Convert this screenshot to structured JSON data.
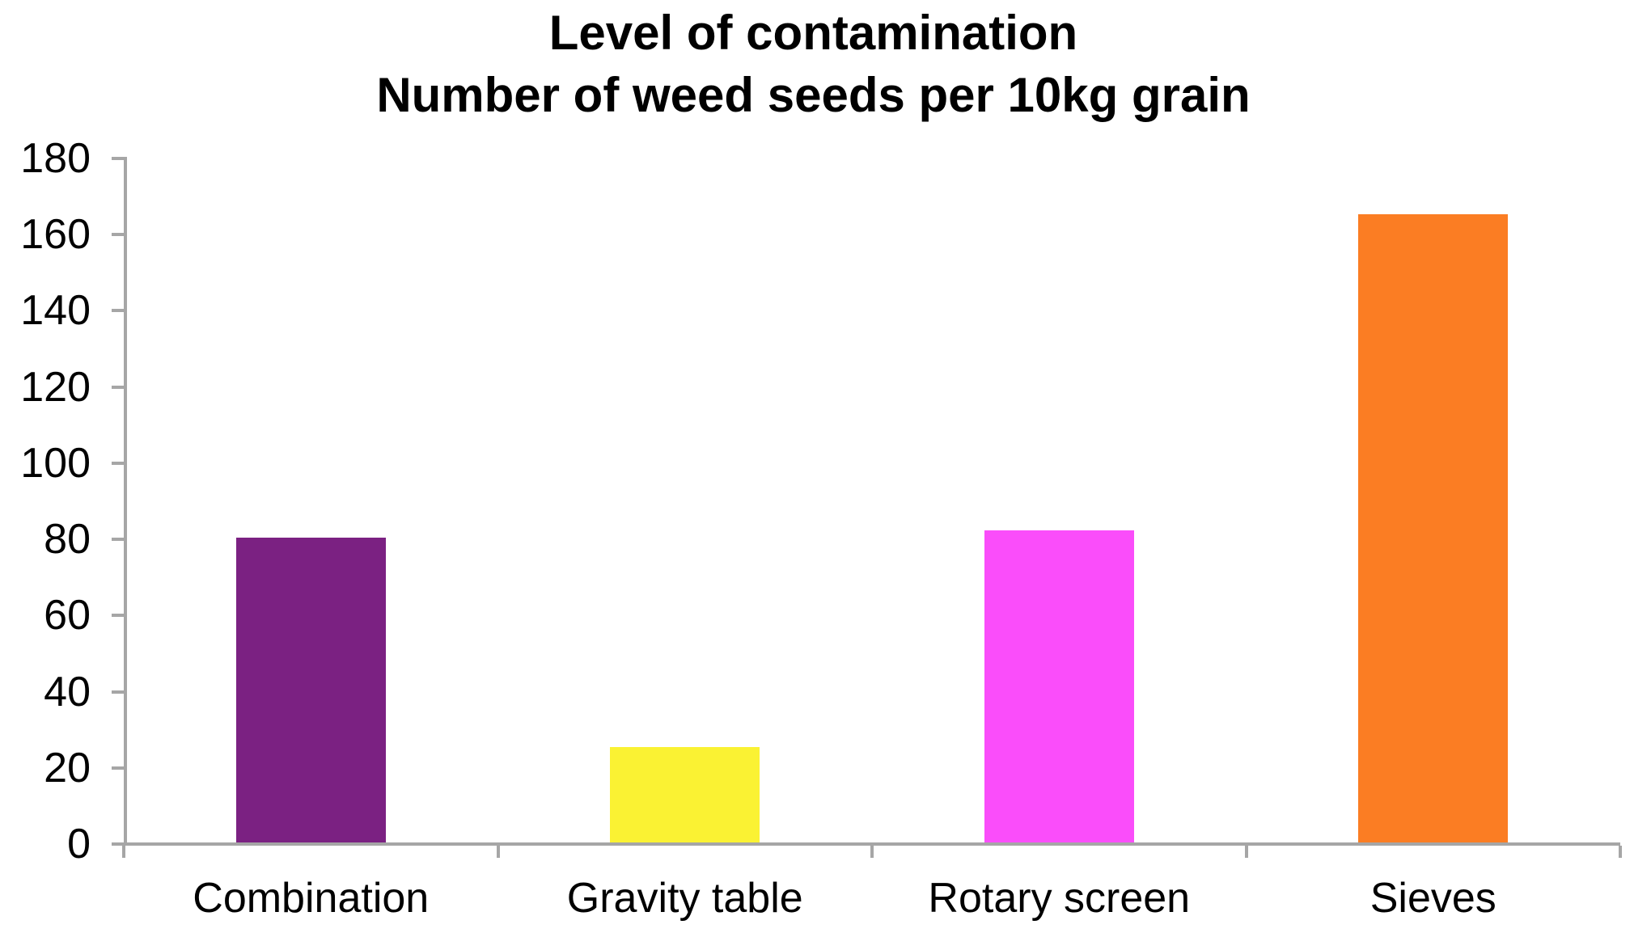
{
  "chart_data": {
    "type": "bar",
    "title_lines": [
      "Level of contamination",
      "Number of weed seeds per 10kg grain"
    ],
    "categories": [
      "Combination",
      "Gravity table",
      "Rotary screen",
      "Sieves"
    ],
    "values": [
      80,
      25,
      82,
      165
    ],
    "bar_colors": [
      "#7B2182",
      "#FAF233",
      "#FA4DFA",
      "#FB7D23"
    ],
    "ylim": [
      0,
      180
    ],
    "yticks": [
      0,
      20,
      40,
      60,
      80,
      100,
      120,
      140,
      160,
      180
    ],
    "xlabel": "",
    "ylabel": "",
    "grid": false,
    "legend": "none",
    "colors": {
      "axis": "#A6A6A6",
      "text": "#000000",
      "background": "#FFFFFF"
    }
  }
}
